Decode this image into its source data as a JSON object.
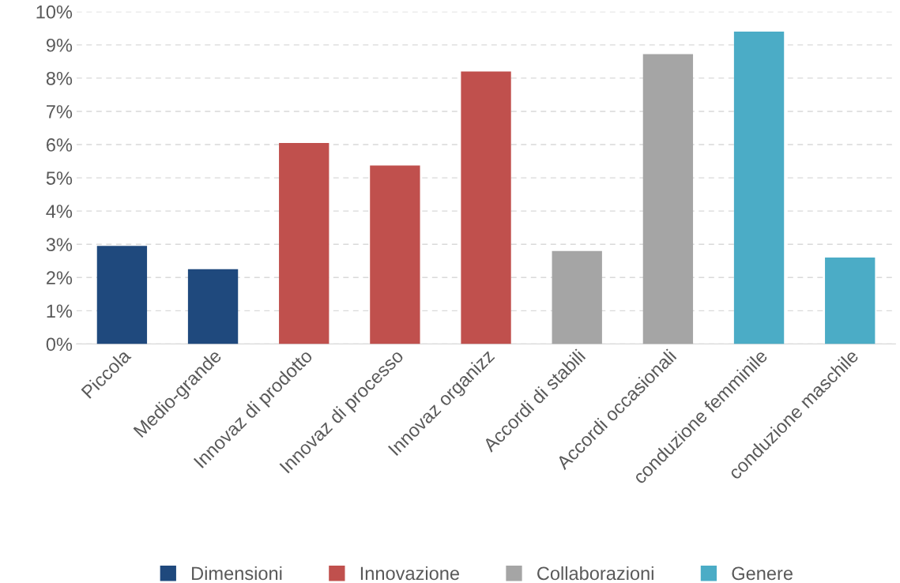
{
  "chart_data": {
    "type": "bar",
    "categories": [
      "Piccola",
      "Medio-grande",
      "Innovaz di prodotto",
      "Innovaz di processo",
      "Innovaz organizz",
      "Accordi di stabili",
      "Accordi occasionali",
      "conduzione femminile",
      "conduzione maschile"
    ],
    "series": [
      {
        "name": "Dimensioni",
        "color": "#1f497d",
        "values": [
          2.95,
          2.25,
          null,
          null,
          null,
          null,
          null,
          null,
          null
        ]
      },
      {
        "name": "Innovazione",
        "color": "#c0504d",
        "values": [
          null,
          null,
          6.05,
          5.37,
          8.2,
          null,
          null,
          null,
          null
        ]
      },
      {
        "name": "Collaborazioni",
        "color": "#a5a5a5",
        "values": [
          null,
          null,
          null,
          null,
          null,
          2.8,
          8.72,
          null,
          null
        ]
      },
      {
        "name": "Genere",
        "color": "#4bacc6",
        "values": [
          null,
          null,
          null,
          null,
          null,
          null,
          null,
          9.4,
          2.6
        ]
      }
    ],
    "ylim": [
      0,
      10
    ],
    "yticks": [
      {
        "value": 0,
        "label": "0%"
      },
      {
        "value": 1,
        "label": "1%"
      },
      {
        "value": 2,
        "label": "2%"
      },
      {
        "value": 3,
        "label": "3%"
      },
      {
        "value": 4,
        "label": "4%"
      },
      {
        "value": 5,
        "label": "5%"
      },
      {
        "value": 6,
        "label": "6%"
      },
      {
        "value": 7,
        "label": "7%"
      },
      {
        "value": 8,
        "label": "8%"
      },
      {
        "value": 9,
        "label": "9%"
      },
      {
        "value": 10,
        "label": "10%"
      }
    ],
    "grid": "y",
    "legend": "bottom"
  }
}
